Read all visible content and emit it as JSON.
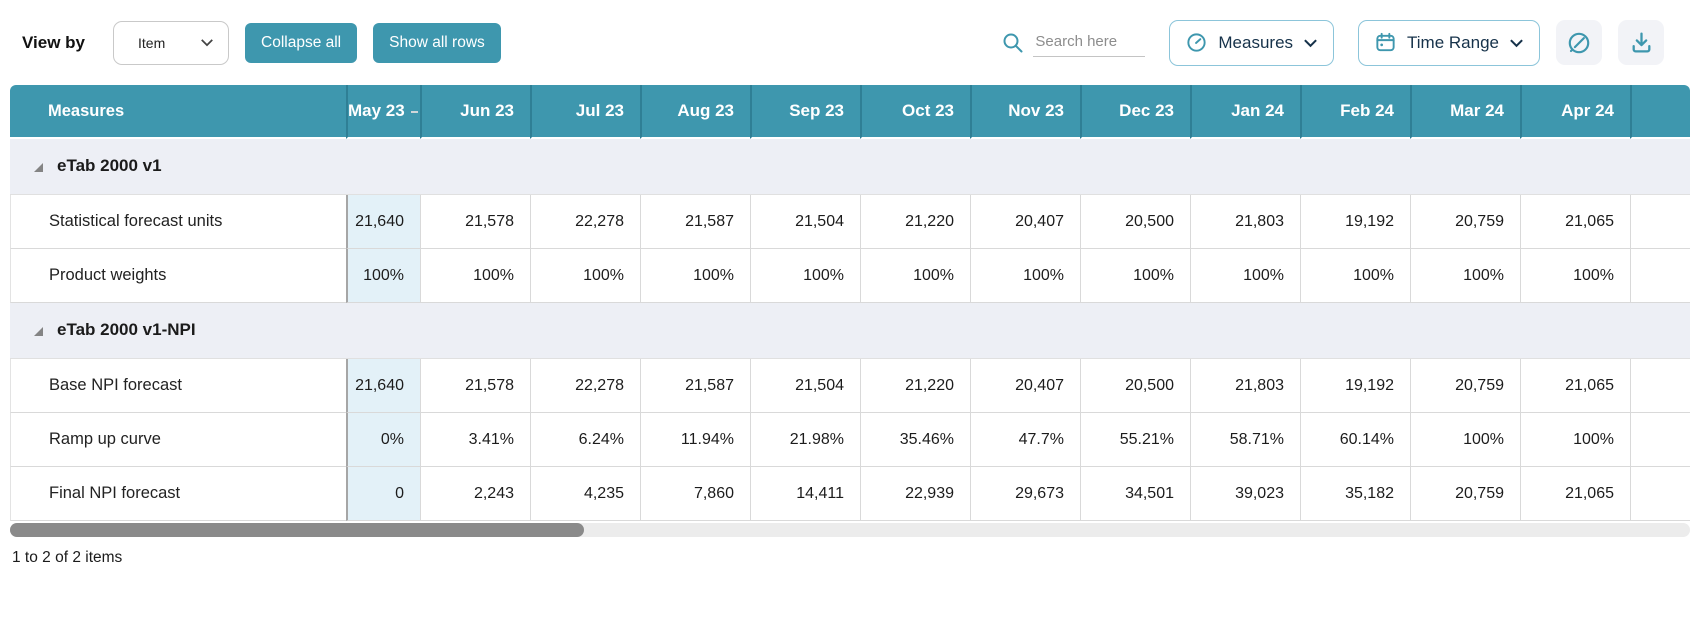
{
  "colors": {
    "accent_teal": "#3e97ae",
    "header_separator": "#2f7f95",
    "group_row_bg": "#edeff5",
    "highlight_column_bg": "#e3f1f8",
    "outline_button_border": "#8cc5da",
    "dark_text": "#16324a"
  },
  "toolbar": {
    "view_by_label": "View by",
    "item_dropdown": {
      "value": "Item"
    },
    "collapse_all_label": "Collapse all",
    "show_all_rows_label": "Show all rows",
    "search": {
      "placeholder": "Search here"
    },
    "measures_button_label": "Measures",
    "time_range_button_label": "Time Range",
    "icons": {
      "search": "magnifier",
      "measures": "gauge",
      "time_range": "calendar",
      "edit": "pencil-circle",
      "download": "download-arrow",
      "dropdown": "chevron-down",
      "group_toggle": "collapse-triangle"
    }
  },
  "table": {
    "measures_header": "Measures",
    "months": [
      "May 23",
      "Jun 23",
      "Jul 23",
      "Aug 23",
      "Sep 23",
      "Oct 23",
      "Nov 23",
      "Dec 23",
      "Jan 24",
      "Feb 24",
      "Mar 24",
      "Apr 24"
    ],
    "highlighted_month": "May 23",
    "groups": [
      {
        "name": "eTab 2000 v1",
        "rows": [
          {
            "measure": "Statistical forecast units",
            "values": [
              "21,640",
              "21,578",
              "22,278",
              "21,587",
              "21,504",
              "21,220",
              "20,407",
              "20,500",
              "21,803",
              "19,192",
              "20,759",
              "21,065"
            ]
          },
          {
            "measure": "Product weights",
            "values": [
              "100%",
              "100%",
              "100%",
              "100%",
              "100%",
              "100%",
              "100%",
              "100%",
              "100%",
              "100%",
              "100%",
              "100%"
            ]
          }
        ]
      },
      {
        "name": "eTab 2000 v1-NPI",
        "rows": [
          {
            "measure": "Base NPI forecast",
            "values": [
              "21,640",
              "21,578",
              "22,278",
              "21,587",
              "21,504",
              "21,220",
              "20,407",
              "20,500",
              "21,803",
              "19,192",
              "20,759",
              "21,065"
            ]
          },
          {
            "measure": "Ramp up curve",
            "values": [
              "0%",
              "3.41%",
              "6.24%",
              "11.94%",
              "21.98%",
              "35.46%",
              "47.7%",
              "55.21%",
              "58.71%",
              "60.14%",
              "100%",
              "100%"
            ]
          },
          {
            "measure": "Final NPI forecast",
            "values": [
              "0",
              "2,243",
              "4,235",
              "7,860",
              "14,411",
              "22,939",
              "29,673",
              "34,501",
              "39,023",
              "35,182",
              "20,759",
              "21,065"
            ]
          }
        ]
      }
    ]
  },
  "footer": {
    "summary": "1 to 2 of 2 items"
  }
}
